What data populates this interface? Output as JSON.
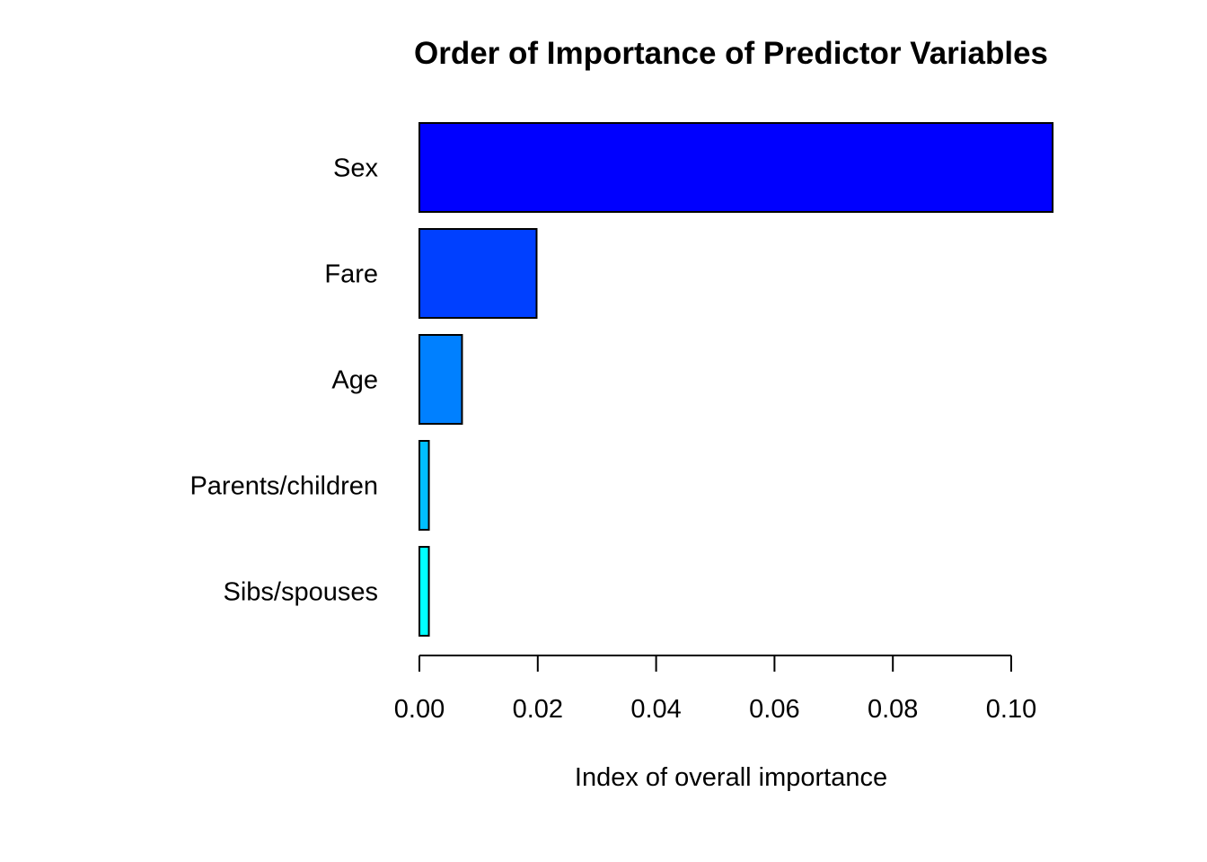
{
  "chart_data": {
    "type": "bar",
    "orientation": "horizontal",
    "title": "Order of Importance of Predictor Variables",
    "xlabel": "Index of overall importance",
    "ylabel": "",
    "categories": [
      "Sex",
      "Fare",
      "Age",
      "Parents/children",
      "Sibs/spouses"
    ],
    "values": [
      0.107,
      0.0198,
      0.0072,
      0.0016,
      0.0016
    ],
    "colors": [
      "#0000FF",
      "#0040FF",
      "#0080FF",
      "#00BFFF",
      "#00FFFF"
    ],
    "xlim": [
      0,
      0.1
    ],
    "xticks": [
      0.0,
      0.02,
      0.04,
      0.06,
      0.08,
      0.1
    ],
    "xtick_labels": [
      "0.00",
      "0.02",
      "0.04",
      "0.06",
      "0.08",
      "0.10"
    ],
    "grid": false,
    "legend": "none"
  }
}
